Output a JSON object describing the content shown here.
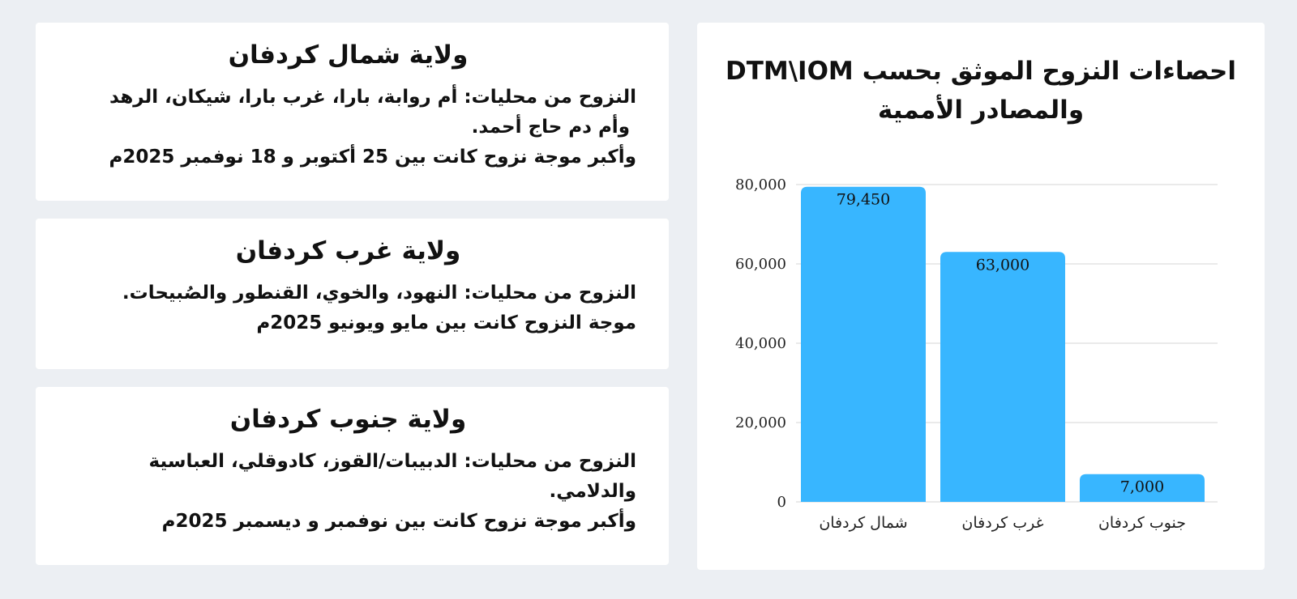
{
  "cards": [
    {
      "title": "ولاية شمال كردفان",
      "lines": [
        "النزوح من محليات: أم روابة، بارا، غرب بارا، شيكان، الرهد",
        "وأم دم حاج أحمد.",
        "وأكبر موجة نزوح كانت بين 25 أكتوبر و 18 نوفمبر 2025م"
      ]
    },
    {
      "title": "ولاية غرب كردفان",
      "lines": [
        "النزوح من محليات:  النهود، والخوي، القنطور والصُبيحات.",
        "موجة النزوح كانت بين مايو ويونيو 2025م"
      ]
    },
    {
      "title": "ولاية جنوب كردفان",
      "lines": [
        "النزوح من محليات: الدبيبات/القوز، كادوقلي، العباسية",
        "والدلامي.",
        "وأكبر موجة نزوح كانت بين نوفمبر و ديسمبر 2025م"
      ]
    }
  ],
  "chart_data": {
    "type": "bar",
    "title": "احصاءات النزوح الموثق بحسب DTM\\IOM والمصادر الأممية",
    "categories": [
      "شمال كردفان",
      "غرب كردفان",
      "جنوب كردفان"
    ],
    "values": [
      79450,
      63000,
      7000
    ],
    "value_labels": [
      "79,450",
      "63,000",
      "7,000"
    ],
    "ylim": [
      0,
      80000
    ],
    "yticks": [
      0,
      20000,
      40000,
      60000,
      80000
    ],
    "ytick_labels": [
      "0",
      "20,000",
      "40,000",
      "60,000",
      "80,000"
    ],
    "grid": true,
    "bar_color": "#38b6ff",
    "grid_color": "#d6d6d6"
  }
}
